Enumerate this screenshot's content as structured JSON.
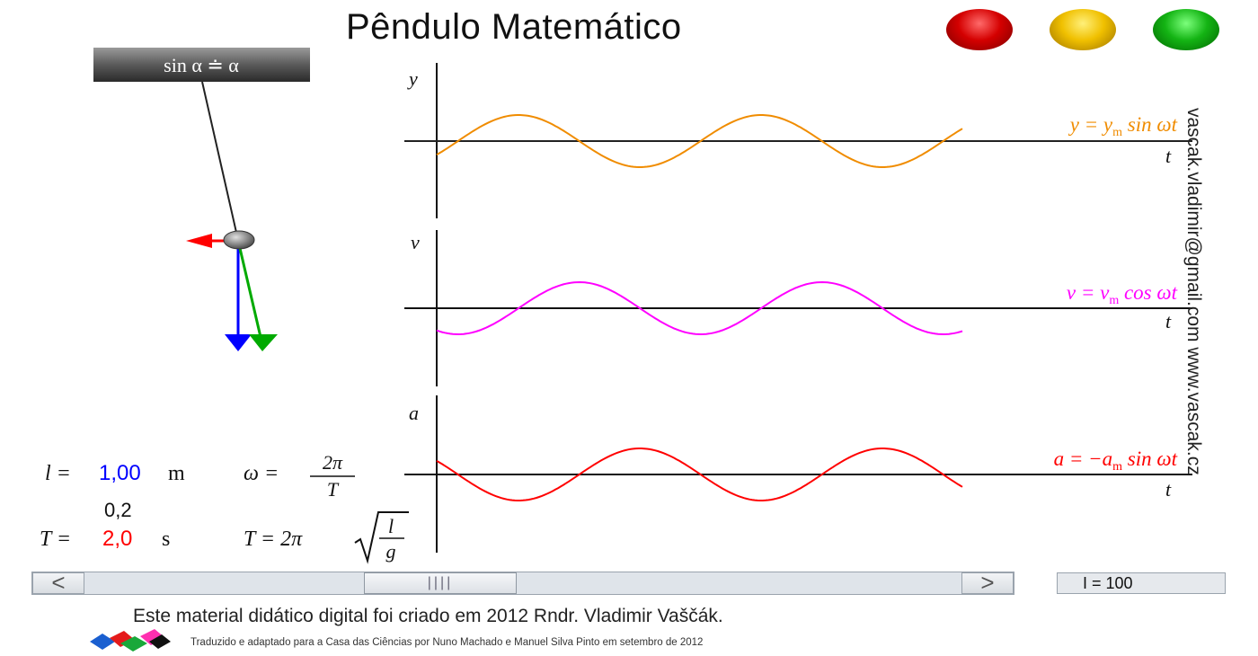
{
  "title": "Pêndulo Matemático",
  "lamps": [
    {
      "name": "red",
      "color": "#d40000"
    },
    {
      "name": "yellow",
      "color": "#f0c000"
    },
    {
      "name": "green",
      "color": "#14b414"
    }
  ],
  "pendulum": {
    "support_label": "sin α ≐ α",
    "arrow_colors": {
      "force": "#ff0000",
      "gravity": "#0000ff",
      "tension": "#00aa00"
    }
  },
  "graphs": {
    "y": {
      "axis_label": "y",
      "time_label": "t",
      "formula_lhs": "y = y",
      "formula_sub": "m",
      "formula_rhs": " sin ωt",
      "color": "#f08c00"
    },
    "v": {
      "axis_label": "v",
      "time_label": "t",
      "formula_lhs": "v = v",
      "formula_sub": "m",
      "formula_rhs": " cos ωt",
      "color": "#ff00ff"
    },
    "a": {
      "axis_label": "a",
      "time_label": "t",
      "formula_lhs": "a = −a",
      "formula_sub": "m",
      "formula_rhs": " sin ωt",
      "color": "#ff0000"
    }
  },
  "params": {
    "length_label": "l =",
    "length_value": "1,00",
    "length_unit": "m",
    "length_color": "#0000ff",
    "omega_lhs": "ω =",
    "omega_num": "2π",
    "omega_den": "T",
    "coef": "0,2",
    "period_label": "T =",
    "period_value": "2,0",
    "period_unit": "s",
    "period_color": "#ff0000",
    "period_formula_lhs": "T = 2π",
    "period_num": "l",
    "period_den": "g"
  },
  "side_text": "vascak.vladimir@gmail.com    www.vascak.cz",
  "scrollbar": {
    "left": "<",
    "right": ">",
    "thumb": "||||"
  },
  "counter": "I = 100",
  "credit": "Este material didático digital foi criado em 2012 Rndr. Vladimir Vaščák.",
  "translator": "Traduzido e adaptado para a Casa das Ciências por Nuno Machado e Manuel Silva Pinto em setembro de 2012"
}
